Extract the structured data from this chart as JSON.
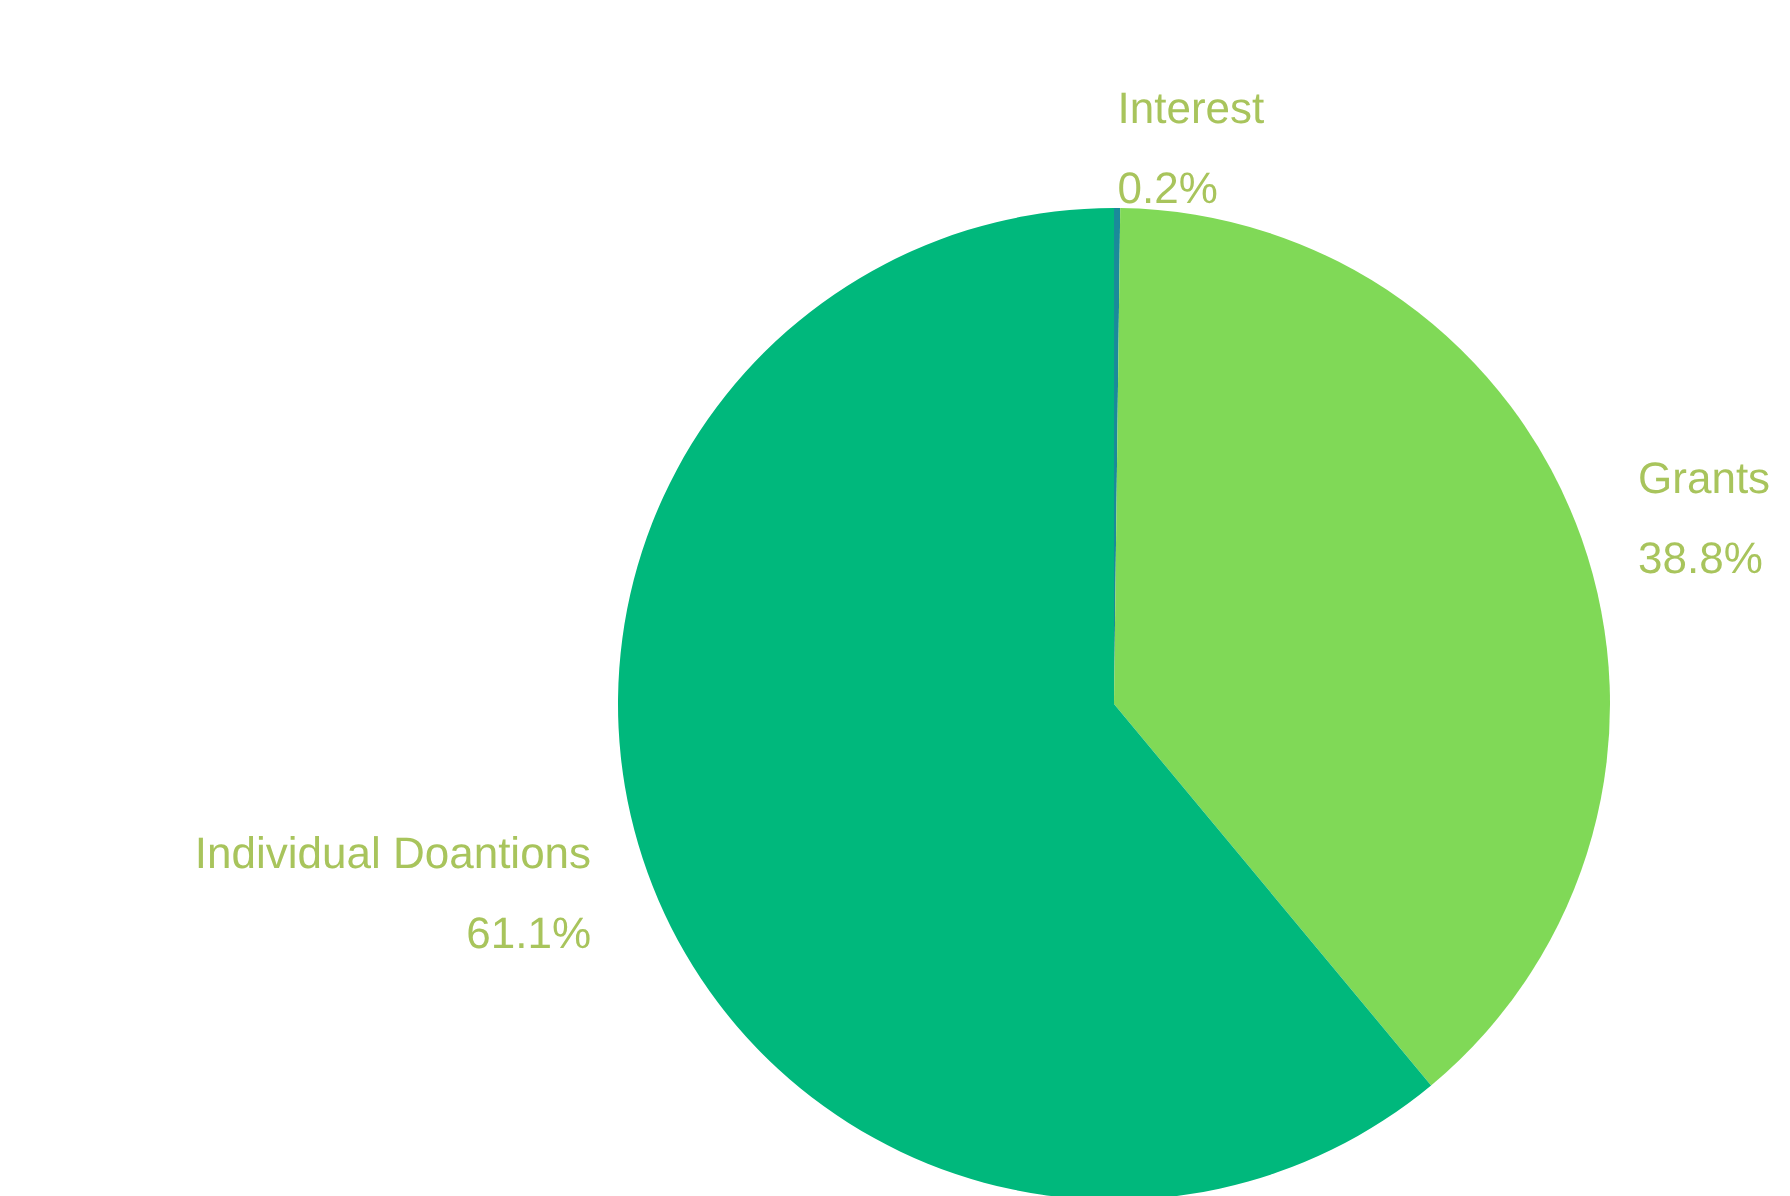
{
  "chart_data": {
    "type": "pie",
    "categories": [
      "Interest",
      "Grants",
      "Individual Doantions"
    ],
    "values": [
      0.2,
      38.8,
      61.1
    ],
    "colors": [
      "#1a8a9a",
      "#80d957",
      "#00b87c"
    ],
    "value_labels": [
      "0.2%",
      "38.8%",
      "61.1%"
    ],
    "legend": false
  }
}
